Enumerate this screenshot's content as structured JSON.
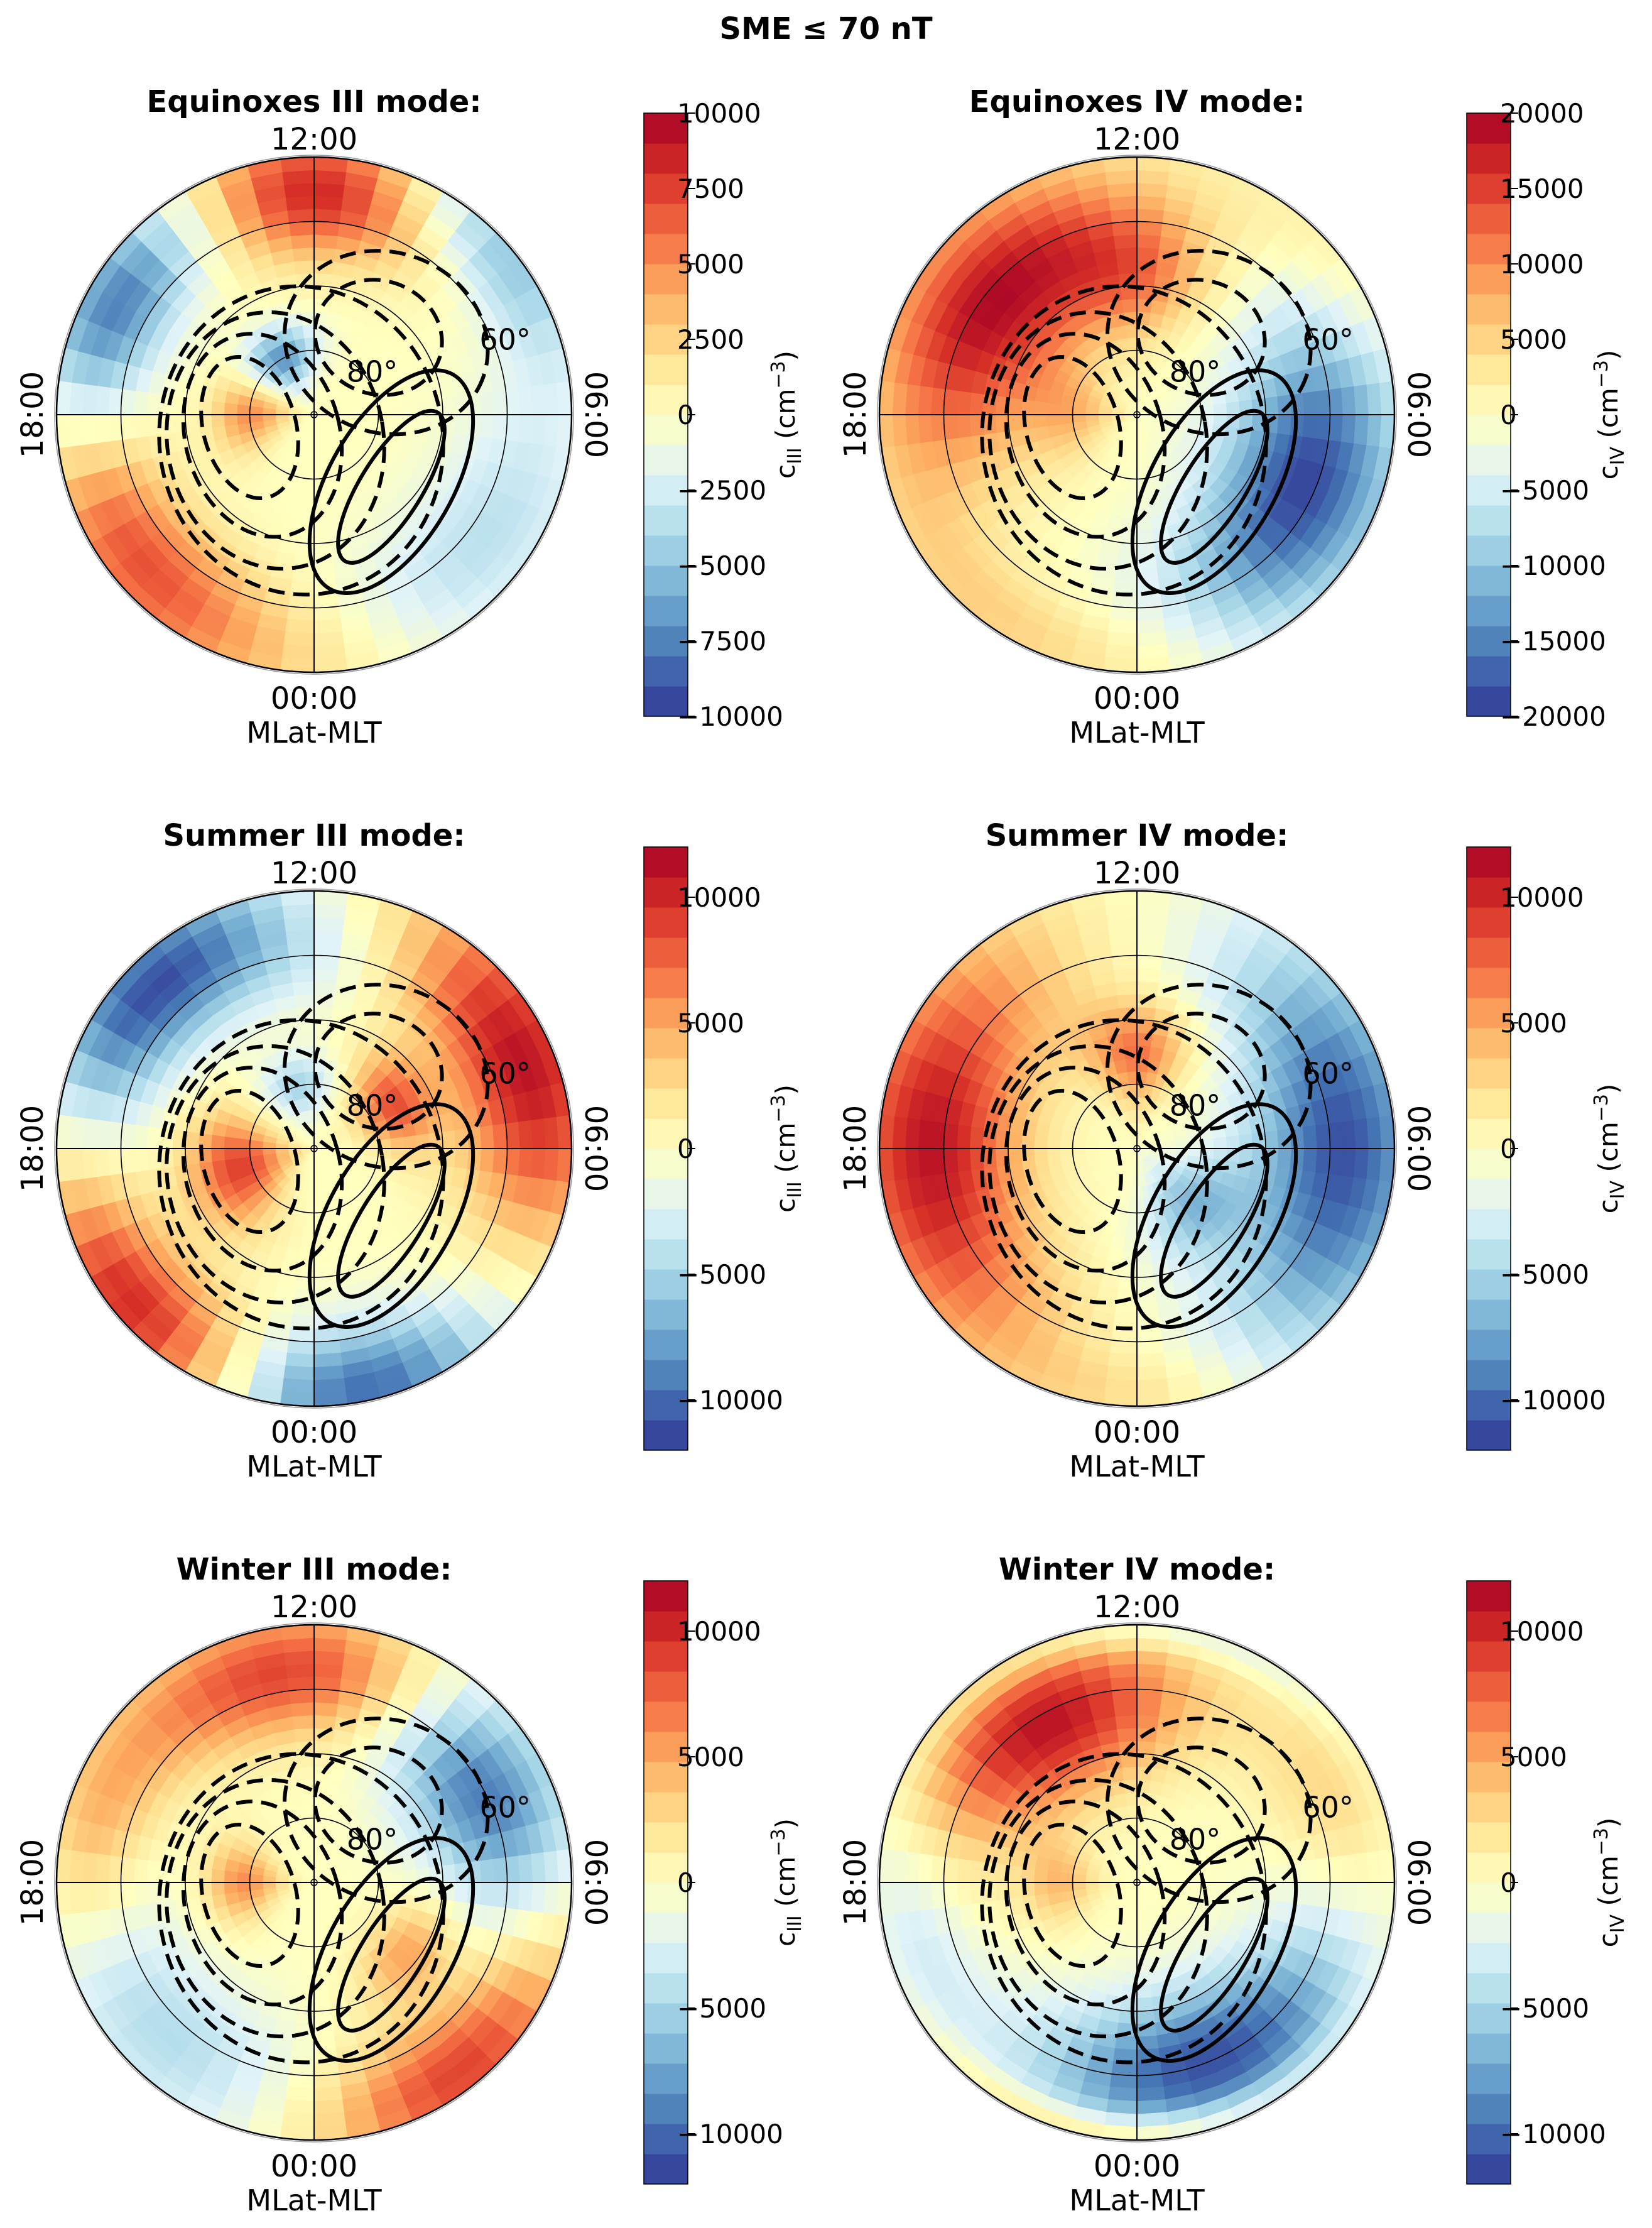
{
  "figure": {
    "title": "SME ≤ 70 nT",
    "colormap": [
      "#313695",
      "#4575b4",
      "#74add1",
      "#abd9e9",
      "#e0f3f8",
      "#ffffbf",
      "#fee090",
      "#fdae61",
      "#f46d43",
      "#d73027",
      "#a50026"
    ]
  },
  "chart_data": [
    {
      "type": "heatmap",
      "projection": "polar (magnetic latitude vs magnetic local time)",
      "title": "Equinoxes III mode:",
      "xlabel": "MLat-MLT",
      "mlt_labels": {
        "top": "12:00",
        "bottom": "00:00",
        "left": "18:00",
        "right": "06:00"
      },
      "lat_labels": [
        "60°",
        "80°"
      ],
      "lat_circles_deg": [
        80,
        70,
        60,
        50
      ],
      "colorbar": {
        "label": "c",
        "sub": "III",
        "unit": "(cm",
        "exp": "−3",
        "close": ")",
        "range": [
          -10000,
          10000
        ],
        "ticks": [
          10000,
          7500,
          5000,
          2500,
          0,
          -2500,
          -5000,
          -7500,
          -10000
        ],
        "tick_labels": [
          "10000",
          "7500",
          "5000",
          "2500",
          "0",
          "−2500",
          "−5000",
          "−7500",
          "−10000"
        ]
      },
      "field": [
        {
          "mlt": 12,
          "lat": 55,
          "value": 9500,
          "width_h": 2.5,
          "width_lat": 10
        },
        {
          "mlt": 9,
          "lat": 52,
          "value": -6000,
          "width_h": 2,
          "width_lat": 8
        },
        {
          "mlt": 16,
          "lat": 55,
          "value": -9000,
          "width_h": 2.5,
          "width_lat": 9
        },
        {
          "mlt": 20.5,
          "lat": 55,
          "value": 7000,
          "width_h": 3,
          "width_lat": 10
        },
        {
          "mlt": 3.5,
          "lat": 57,
          "value": -3500,
          "width_h": 3,
          "width_lat": 12
        },
        {
          "mlt": 0,
          "lat": 50,
          "value": 1000,
          "width_h": 3,
          "width_lat": 8
        },
        {
          "mlt": 18,
          "lat": 80,
          "value": 5000,
          "width_h": 2,
          "width_lat": 6
        },
        {
          "mlt": 14,
          "lat": 80,
          "value": -7000,
          "width_h": 2,
          "width_lat": 5
        }
      ],
      "contours": [
        {
          "style": "dashed",
          "cx": -0.25,
          "cy": 0.05,
          "rx": 0.18,
          "ry": 0.28,
          "rot": -15
        },
        {
          "style": "dashed",
          "cx": -0.2,
          "cy": 0.08,
          "rx": 0.3,
          "ry": 0.4,
          "rot": -15
        },
        {
          "style": "dashed",
          "cx": -0.15,
          "cy": 0.1,
          "rx": 0.42,
          "ry": 0.5,
          "rot": -10
        },
        {
          "style": "dashed",
          "cx": -0.05,
          "cy": 0.1,
          "rx": 0.55,
          "ry": 0.6,
          "rot": -10
        },
        {
          "style": "dashed",
          "cx": 0.25,
          "cy": -0.3,
          "rx": 0.25,
          "ry": 0.22,
          "rot": 20
        },
        {
          "style": "dashed",
          "cx": 0.28,
          "cy": -0.28,
          "rx": 0.4,
          "ry": 0.35,
          "rot": 20
        },
        {
          "style": "solid",
          "cx": 0.3,
          "cy": 0.28,
          "rx": 0.12,
          "ry": 0.34,
          "rot": 32
        },
        {
          "style": "solid",
          "cx": 0.3,
          "cy": 0.26,
          "rx": 0.24,
          "ry": 0.48,
          "rot": 30
        }
      ]
    },
    {
      "type": "heatmap",
      "projection": "polar (magnetic latitude vs magnetic local time)",
      "title": "Equinoxes IV mode:",
      "xlabel": "MLat-MLT",
      "mlt_labels": {
        "top": "12:00",
        "bottom": "00:00",
        "left": "18:00",
        "right": "06:00"
      },
      "lat_labels": [
        "60°",
        "80°"
      ],
      "lat_circles_deg": [
        80,
        70,
        60,
        50
      ],
      "colorbar": {
        "label": "c",
        "sub": "IV",
        "unit": "(cm",
        "exp": "−3",
        "close": ")",
        "range": [
          -20000,
          20000
        ],
        "ticks": [
          20000,
          15000,
          10000,
          5000,
          0,
          -5000,
          -10000,
          -15000,
          -20000
        ],
        "tick_labels": [
          "20000",
          "15000",
          "10000",
          "5000",
          "0",
          "−5000",
          "−10000",
          "−15000",
          "−20000"
        ]
      },
      "field": [
        {
          "mlt": 15.5,
          "lat": 62,
          "value": 19000,
          "width_h": 3.5,
          "width_lat": 14
        },
        {
          "mlt": 12,
          "lat": 68,
          "value": 8000,
          "width_h": 2,
          "width_lat": 10
        },
        {
          "mlt": 4.5,
          "lat": 62,
          "value": -19000,
          "width_h": 3.5,
          "width_lat": 14
        },
        {
          "mlt": 22,
          "lat": 52,
          "value": 5000,
          "width_h": 3,
          "width_lat": 8
        },
        {
          "mlt": 8.5,
          "lat": 52,
          "value": 3000,
          "width_h": 2,
          "width_lat": 8
        },
        {
          "mlt": 18,
          "lat": 80,
          "value": 6000,
          "width_h": 2.5,
          "width_lat": 7
        }
      ],
      "contours": [
        {
          "style": "dashed",
          "cx": -0.25,
          "cy": 0.05,
          "rx": 0.18,
          "ry": 0.28,
          "rot": -15
        },
        {
          "style": "dashed",
          "cx": -0.2,
          "cy": 0.08,
          "rx": 0.3,
          "ry": 0.4,
          "rot": -15
        },
        {
          "style": "dashed",
          "cx": -0.15,
          "cy": 0.1,
          "rx": 0.42,
          "ry": 0.5,
          "rot": -10
        },
        {
          "style": "dashed",
          "cx": -0.05,
          "cy": 0.1,
          "rx": 0.55,
          "ry": 0.6,
          "rot": -10
        },
        {
          "style": "dashed",
          "cx": 0.25,
          "cy": -0.3,
          "rx": 0.25,
          "ry": 0.22,
          "rot": 20
        },
        {
          "style": "dashed",
          "cx": 0.28,
          "cy": -0.28,
          "rx": 0.4,
          "ry": 0.35,
          "rot": 20
        },
        {
          "style": "solid",
          "cx": 0.3,
          "cy": 0.28,
          "rx": 0.12,
          "ry": 0.34,
          "rot": 32
        },
        {
          "style": "solid",
          "cx": 0.3,
          "cy": 0.26,
          "rx": 0.24,
          "ry": 0.48,
          "rot": 30
        }
      ]
    },
    {
      "type": "heatmap",
      "projection": "polar (magnetic latitude vs magnetic local time)",
      "title": "Summer III mode:",
      "xlabel": "MLat-MLT",
      "mlt_labels": {
        "top": "12:00",
        "bottom": "00:00",
        "left": "18:00",
        "right": "06:00"
      },
      "lat_labels": [
        "60°",
        "80°"
      ],
      "lat_circles_deg": [
        80,
        70,
        60,
        50
      ],
      "colorbar": {
        "label": "c",
        "sub": "III",
        "unit": "(cm",
        "exp": "−3",
        "close": ")",
        "range": [
          -12000,
          12000
        ],
        "ticks": [
          10000,
          5000,
          0,
          -5000,
          -10000
        ],
        "tick_labels": [
          "10000",
          "5000",
          "0",
          "−5000",
          "−10000"
        ]
      },
      "field": [
        {
          "mlt": 15,
          "lat": 55,
          "value": -11000,
          "width_h": 2.5,
          "width_lat": 10
        },
        {
          "mlt": 7.5,
          "lat": 55,
          "value": 11000,
          "width_h": 3,
          "width_lat": 12
        },
        {
          "mlt": 21,
          "lat": 53,
          "value": 11000,
          "width_h": 2.5,
          "width_lat": 10
        },
        {
          "mlt": 0.5,
          "lat": 52,
          "value": -11000,
          "width_h": 2.5,
          "width_lat": 10
        },
        {
          "mlt": 12,
          "lat": 60,
          "value": -2000,
          "width_h": 2,
          "width_lat": 10
        },
        {
          "mlt": 19,
          "lat": 78,
          "value": 9000,
          "width_h": 2.5,
          "width_lat": 8
        },
        {
          "mlt": 8,
          "lat": 76,
          "value": 8000,
          "width_h": 2,
          "width_lat": 6
        },
        {
          "mlt": 13,
          "lat": 80,
          "value": -5000,
          "width_h": 2,
          "width_lat": 5
        }
      ],
      "contours": [
        {
          "style": "dashed",
          "cx": -0.25,
          "cy": 0.05,
          "rx": 0.18,
          "ry": 0.28,
          "rot": -15
        },
        {
          "style": "dashed",
          "cx": -0.2,
          "cy": 0.08,
          "rx": 0.3,
          "ry": 0.4,
          "rot": -15
        },
        {
          "style": "dashed",
          "cx": -0.15,
          "cy": 0.1,
          "rx": 0.42,
          "ry": 0.5,
          "rot": -10
        },
        {
          "style": "dashed",
          "cx": -0.05,
          "cy": 0.1,
          "rx": 0.55,
          "ry": 0.6,
          "rot": -10
        },
        {
          "style": "dashed",
          "cx": 0.25,
          "cy": -0.3,
          "rx": 0.25,
          "ry": 0.22,
          "rot": 20
        },
        {
          "style": "dashed",
          "cx": 0.28,
          "cy": -0.28,
          "rx": 0.4,
          "ry": 0.35,
          "rot": 20
        },
        {
          "style": "solid",
          "cx": 0.3,
          "cy": 0.28,
          "rx": 0.12,
          "ry": 0.34,
          "rot": 32
        },
        {
          "style": "solid",
          "cx": 0.3,
          "cy": 0.26,
          "rx": 0.24,
          "ry": 0.48,
          "rot": 30
        }
      ]
    },
    {
      "type": "heatmap",
      "projection": "polar (magnetic latitude vs magnetic local time)",
      "title": "Summer IV mode:",
      "xlabel": "MLat-MLT",
      "mlt_labels": {
        "top": "12:00",
        "bottom": "00:00",
        "left": "18:00",
        "right": "06:00"
      },
      "lat_labels": [
        "60°",
        "80°"
      ],
      "lat_circles_deg": [
        80,
        70,
        60,
        50
      ],
      "colorbar": {
        "label": "c",
        "sub": "IV",
        "unit": "(cm",
        "exp": "−3",
        "close": ")",
        "range": [
          -12000,
          12000
        ],
        "ticks": [
          10000,
          5000,
          0,
          -5000,
          -10000
        ],
        "tick_labels": [
          "10000",
          "5000",
          "0",
          "−5000",
          "−10000"
        ]
      },
      "field": [
        {
          "mlt": 18,
          "lat": 58,
          "value": 11000,
          "width_h": 4,
          "width_lat": 14
        },
        {
          "mlt": 6,
          "lat": 58,
          "value": -11000,
          "width_h": 4,
          "width_lat": 14
        },
        {
          "mlt": 12,
          "lat": 75,
          "value": 7000,
          "width_h": 2,
          "width_lat": 8
        },
        {
          "mlt": 3,
          "lat": 78,
          "value": -6000,
          "width_h": 2.5,
          "width_lat": 8
        },
        {
          "mlt": 0,
          "lat": 52,
          "value": 2000,
          "width_h": 2,
          "width_lat": 6
        }
      ],
      "contours": [
        {
          "style": "dashed",
          "cx": -0.25,
          "cy": 0.05,
          "rx": 0.18,
          "ry": 0.28,
          "rot": -15
        },
        {
          "style": "dashed",
          "cx": -0.2,
          "cy": 0.08,
          "rx": 0.3,
          "ry": 0.4,
          "rot": -15
        },
        {
          "style": "dashed",
          "cx": -0.15,
          "cy": 0.1,
          "rx": 0.42,
          "ry": 0.5,
          "rot": -10
        },
        {
          "style": "dashed",
          "cx": -0.05,
          "cy": 0.1,
          "rx": 0.55,
          "ry": 0.6,
          "rot": -10
        },
        {
          "style": "dashed",
          "cx": 0.25,
          "cy": -0.3,
          "rx": 0.25,
          "ry": 0.22,
          "rot": 20
        },
        {
          "style": "dashed",
          "cx": 0.28,
          "cy": -0.28,
          "rx": 0.4,
          "ry": 0.35,
          "rot": 20
        },
        {
          "style": "solid",
          "cx": 0.3,
          "cy": 0.28,
          "rx": 0.12,
          "ry": 0.34,
          "rot": 32
        },
        {
          "style": "solid",
          "cx": 0.3,
          "cy": 0.26,
          "rx": 0.24,
          "ry": 0.48,
          "rot": 30
        }
      ]
    },
    {
      "type": "heatmap",
      "projection": "polar (magnetic latitude vs magnetic local time)",
      "title": "Winter III mode:",
      "xlabel": "MLat-MLT",
      "mlt_labels": {
        "top": "12:00",
        "bottom": "00:00",
        "left": "18:00",
        "right": "06:00"
      },
      "lat_labels": [
        "60°",
        "80°"
      ],
      "lat_circles_deg": [
        80,
        70,
        60,
        50
      ],
      "colorbar": {
        "label": "c",
        "sub": "III",
        "unit": "(cm",
        "exp": "−3",
        "close": ")",
        "range": [
          -12000,
          12000
        ],
        "ticks": [
          10000,
          5000,
          0,
          -5000,
          -10000
        ],
        "tick_labels": [
          "10000",
          "5000",
          "0",
          "−5000",
          "−10000"
        ]
      },
      "field": [
        {
          "mlt": 12.5,
          "lat": 57,
          "value": 9000,
          "width_h": 3,
          "width_lat": 10
        },
        {
          "mlt": 8,
          "lat": 60,
          "value": -10000,
          "width_h": 2.5,
          "width_lat": 12
        },
        {
          "mlt": 2.5,
          "lat": 53,
          "value": 9000,
          "width_h": 2.5,
          "width_lat": 10
        },
        {
          "mlt": 21,
          "lat": 57,
          "value": -4500,
          "width_h": 3,
          "width_lat": 12
        },
        {
          "mlt": 17,
          "lat": 55,
          "value": 4000,
          "width_h": 2,
          "width_lat": 8
        },
        {
          "mlt": 18,
          "lat": 79,
          "value": 6000,
          "width_h": 2,
          "width_lat": 6
        },
        {
          "mlt": 3.5,
          "lat": 72,
          "value": 5000,
          "width_h": 1.8,
          "width_lat": 6
        }
      ],
      "contours": [
        {
          "style": "dashed",
          "cx": -0.25,
          "cy": 0.05,
          "rx": 0.18,
          "ry": 0.28,
          "rot": -15
        },
        {
          "style": "dashed",
          "cx": -0.2,
          "cy": 0.08,
          "rx": 0.3,
          "ry": 0.4,
          "rot": -15
        },
        {
          "style": "dashed",
          "cx": -0.15,
          "cy": 0.1,
          "rx": 0.42,
          "ry": 0.5,
          "rot": -10
        },
        {
          "style": "dashed",
          "cx": -0.05,
          "cy": 0.1,
          "rx": 0.55,
          "ry": 0.6,
          "rot": -10
        },
        {
          "style": "dashed",
          "cx": 0.25,
          "cy": -0.3,
          "rx": 0.25,
          "ry": 0.22,
          "rot": 20
        },
        {
          "style": "dashed",
          "cx": 0.28,
          "cy": -0.28,
          "rx": 0.4,
          "ry": 0.35,
          "rot": 20
        },
        {
          "style": "solid",
          "cx": 0.3,
          "cy": 0.28,
          "rx": 0.12,
          "ry": 0.34,
          "rot": 32
        },
        {
          "style": "solid",
          "cx": 0.3,
          "cy": 0.26,
          "rx": 0.24,
          "ry": 0.48,
          "rot": 30
        }
      ]
    },
    {
      "type": "heatmap",
      "projection": "polar (magnetic latitude vs magnetic local time)",
      "title": "Winter IV mode:",
      "xlabel": "MLat-MLT",
      "mlt_labels": {
        "top": "12:00",
        "bottom": "00:00",
        "left": "18:00",
        "right": "06:00"
      },
      "lat_labels": [
        "60°",
        "80°"
      ],
      "lat_circles_deg": [
        80,
        70,
        60,
        50
      ],
      "colorbar": {
        "label": "c",
        "sub": "IV",
        "unit": "(cm",
        "exp": "−3",
        "close": ")",
        "range": [
          -12000,
          12000
        ],
        "ticks": [
          10000,
          5000,
          0,
          -5000,
          -10000
        ],
        "tick_labels": [
          "10000",
          "5000",
          "0",
          "−5000",
          "−10000"
        ]
      },
      "field": [
        {
          "mlt": 14,
          "lat": 62,
          "value": 11000,
          "width_h": 3,
          "width_lat": 12
        },
        {
          "mlt": 1.5,
          "lat": 60,
          "value": -11000,
          "width_h": 3.5,
          "width_lat": 12
        },
        {
          "mlt": 19,
          "lat": 55,
          "value": -3000,
          "width_h": 2,
          "width_lat": 8
        },
        {
          "mlt": 7.5,
          "lat": 57,
          "value": 3000,
          "width_h": 2,
          "width_lat": 10
        },
        {
          "mlt": 12,
          "lat": 51,
          "value": -3000,
          "width_h": 4,
          "width_lat": 3
        },
        {
          "mlt": 0,
          "lat": 51,
          "value": 5000,
          "width_h": 3,
          "width_lat": 3
        },
        {
          "mlt": 18,
          "lat": 78,
          "value": 4000,
          "width_h": 2,
          "width_lat": 6
        }
      ],
      "contours": [
        {
          "style": "dashed",
          "cx": -0.25,
          "cy": 0.05,
          "rx": 0.18,
          "ry": 0.28,
          "rot": -15
        },
        {
          "style": "dashed",
          "cx": -0.2,
          "cy": 0.08,
          "rx": 0.3,
          "ry": 0.4,
          "rot": -15
        },
        {
          "style": "dashed",
          "cx": -0.15,
          "cy": 0.1,
          "rx": 0.42,
          "ry": 0.5,
          "rot": -10
        },
        {
          "style": "dashed",
          "cx": -0.05,
          "cy": 0.1,
          "rx": 0.55,
          "ry": 0.6,
          "rot": -10
        },
        {
          "style": "dashed",
          "cx": 0.25,
          "cy": -0.3,
          "rx": 0.25,
          "ry": 0.22,
          "rot": 20
        },
        {
          "style": "dashed",
          "cx": 0.28,
          "cy": -0.28,
          "rx": 0.4,
          "ry": 0.35,
          "rot": 20
        },
        {
          "style": "solid",
          "cx": 0.3,
          "cy": 0.28,
          "rx": 0.12,
          "ry": 0.34,
          "rot": 32
        },
        {
          "style": "solid",
          "cx": 0.3,
          "cy": 0.26,
          "rx": 0.24,
          "ry": 0.48,
          "rot": 30
        }
      ]
    }
  ]
}
